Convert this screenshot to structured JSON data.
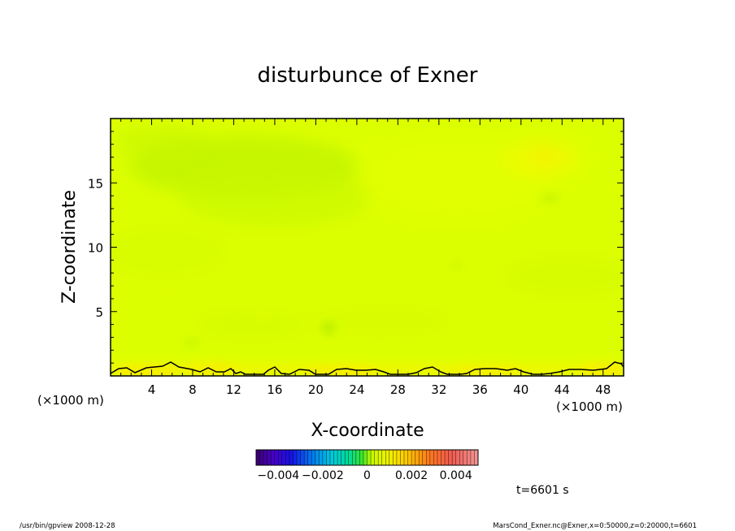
{
  "chart_data": {
    "type": "heatmap",
    "title": "disturbunce of Exner",
    "xlabel": "X-coordinate",
    "ylabel": "Z-coordinate",
    "x_unit": "(×1000 m)",
    "y_unit": "(×1000 m)",
    "xlim": [
      0,
      50
    ],
    "ylim": [
      0,
      20
    ],
    "x_ticks": [
      "4",
      "8",
      "12",
      "16",
      "20",
      "24",
      "28",
      "32",
      "36",
      "40",
      "44",
      "48"
    ],
    "y_ticks": [
      "5",
      "10",
      "15"
    ],
    "colorbar": {
      "min": -0.005,
      "max": 0.005,
      "tick_labels": [
        "-0.004",
        "-0.002",
        "0",
        "0.002",
        "0.004"
      ]
    },
    "field_summary": "near-zero disturbance across domain (yellow-green), slightly negative region around z 12-18, slightly positive near surface and around x 42 z 17",
    "contour_line": "zero contour near surface z < 1.5",
    "colors": {
      "dominant": "#dcff00",
      "negative_patch": "#bff200",
      "positive_patch": "#f6f000"
    }
  },
  "time_label": "t=6601 s",
  "footer_left": "/usr/bin/gpview   2008-12-28",
  "footer_right": "MarsCond_Exner.nc@Exner,x=0:50000,z=0:20000,t=6601"
}
